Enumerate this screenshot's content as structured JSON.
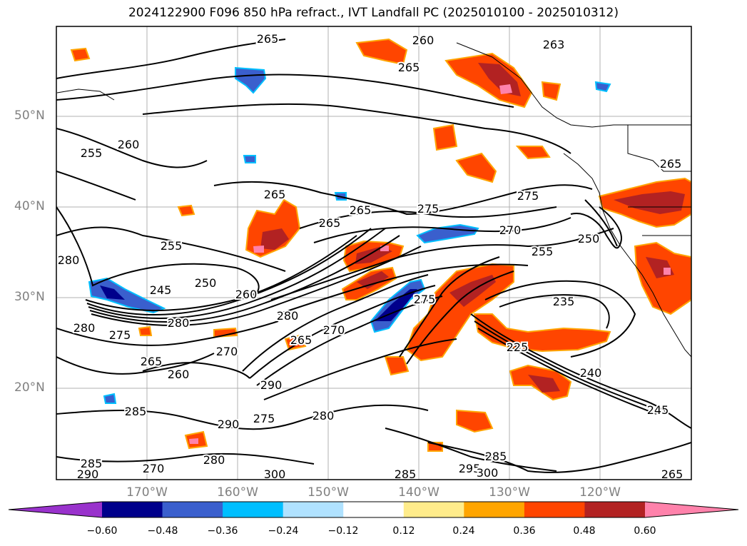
{
  "title": "2024122900 F096 850 hPa refract., IVT Landfall PC (2025010100 - 2025010312)",
  "lat_labels": [
    "50°N",
    "40°N",
    "30°N",
    "20°N"
  ],
  "lon_labels": [
    "170°W",
    "160°W",
    "150°W",
    "140°W",
    "130°W",
    "120°W"
  ],
  "colorbar": {
    "ticks": [
      "−0.60",
      "−0.48",
      "−0.36",
      "−0.24",
      "−0.12",
      "0.12",
      "0.24",
      "0.36",
      "0.48",
      "0.60"
    ],
    "colors": [
      "#9932cc",
      "#00008b",
      "#3a5fcd",
      "#00bfff",
      "#b0e2ff",
      "#ffffff",
      "#ffec8b",
      "#ffa500",
      "#ff4500",
      "#b22222",
      "#ff82ab"
    ]
  },
  "contour_labels": [
    "260",
    "265",
    "265",
    "255",
    "260",
    "265",
    "265",
    "265",
    "275",
    "270",
    "275",
    "255",
    "250",
    "280",
    "255",
    "250",
    "245",
    "260",
    "280",
    "280",
    "275",
    "275",
    "280",
    "270",
    "270",
    "265",
    "265",
    "260",
    "290",
    "285",
    "285",
    "290",
    "280",
    "275",
    "280",
    "285",
    "290",
    "295",
    "300",
    "300",
    "285",
    "265",
    "270",
    "235",
    "240",
    "245",
    "225",
    "265",
    "263"
  ],
  "colors": {
    "frame": "#000000",
    "grid": "#b0b0b0",
    "land": "#000000",
    "contour": "#000000"
  }
}
